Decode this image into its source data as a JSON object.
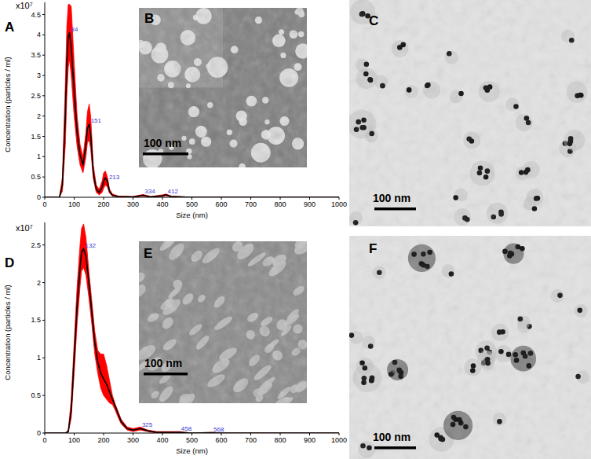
{
  "chart_data": [
    {
      "type": "line",
      "panel_label": "A",
      "x_label": "Size (nm)",
      "y_label": "Concentration (particles / ml)",
      "y_unit_label": "x10⁷",
      "xlim": [
        0,
        1000
      ],
      "ylim": [
        0,
        4.8
      ],
      "xticks": [
        0,
        100,
        200,
        300,
        400,
        500,
        600,
        700,
        800,
        900,
        1000
      ],
      "yticks": [
        0,
        0.5,
        1,
        1.5,
        2,
        2.5,
        3,
        3.5,
        4,
        4.5
      ],
      "x": [
        0,
        50,
        60,
        70,
        75,
        80,
        84,
        90,
        100,
        110,
        120,
        130,
        140,
        145,
        151,
        156,
        165,
        175,
        185,
        195,
        200,
        206,
        213,
        220,
        230,
        250,
        300,
        334,
        360,
        400,
        412,
        430,
        500,
        600,
        700,
        800,
        900,
        1000
      ],
      "series": [
        {
          "type": "area",
          "color": "#ff0000",
          "values": [
            0,
            0,
            0.5,
            2.8,
            4.2,
            4.75,
            4.75,
            4.7,
            3.3,
            2.0,
            1.3,
            1.0,
            1.6,
            2.1,
            2.3,
            2.0,
            0.8,
            0.3,
            0.2,
            0.4,
            0.6,
            0.65,
            0.5,
            0.2,
            0.08,
            0.03,
            0.02,
            0.07,
            0.02,
            0.06,
            0.08,
            0.03,
            0,
            0,
            0,
            0,
            0,
            0
          ],
          "lower": [
            0,
            0,
            0.15,
            1.3,
            2.5,
            3.2,
            3.4,
            3.0,
            2.0,
            1.25,
            0.8,
            0.6,
            1.0,
            1.35,
            1.4,
            1.2,
            0.45,
            0.12,
            0.06,
            0.12,
            0.22,
            0.3,
            0.25,
            0.1,
            0.03,
            0.01,
            0,
            0.03,
            0,
            0.02,
            0.04,
            0.01,
            0,
            0,
            0,
            0,
            0,
            0
          ]
        },
        {
          "type": "line",
          "color": "#000000",
          "values": [
            0,
            0,
            0.3,
            2.0,
            3.3,
            3.95,
            4.05,
            3.7,
            2.6,
            1.6,
            1.05,
            0.8,
            1.3,
            1.7,
            1.8,
            1.55,
            0.6,
            0.2,
            0.12,
            0.25,
            0.4,
            0.48,
            0.4,
            0.15,
            0.05,
            0.02,
            0.01,
            0.05,
            0.01,
            0.04,
            0.06,
            0.02,
            0,
            0,
            0,
            0,
            0,
            0
          ]
        }
      ],
      "annotations": [
        {
          "x": 84,
          "y": 4.05,
          "text": "84"
        },
        {
          "x": 151,
          "y": 1.8,
          "text": "151"
        },
        {
          "x": 213,
          "y": 0.4,
          "text": "213"
        },
        {
          "x": 334,
          "y": 0.05,
          "text": "334"
        },
        {
          "x": 412,
          "y": 0.06,
          "text": "412"
        }
      ]
    },
    {
      "type": "line",
      "panel_label": "D",
      "x_label": "Size (nm)",
      "y_label": "Concentration (particles / ml)",
      "y_unit_label": "x10⁷",
      "xlim": [
        0,
        1000
      ],
      "ylim": [
        0,
        2.8
      ],
      "xticks": [
        0,
        100,
        200,
        300,
        400,
        500,
        600,
        700,
        800,
        900,
        1000
      ],
      "yticks": [
        0,
        0.5,
        1,
        1.5,
        2,
        2.5
      ],
      "x": [
        0,
        70,
        80,
        90,
        100,
        110,
        120,
        125,
        132,
        140,
        150,
        160,
        170,
        180,
        190,
        200,
        210,
        220,
        230,
        240,
        250,
        260,
        280,
        300,
        325,
        350,
        380,
        400,
        458,
        500,
        568,
        600,
        700,
        800,
        900,
        1000
      ],
      "series": [
        {
          "type": "area",
          "color": "#ff0000",
          "values": [
            0,
            0,
            0.04,
            0.45,
            1.2,
            1.95,
            2.5,
            2.72,
            2.78,
            2.6,
            2.15,
            1.75,
            1.35,
            1.1,
            1.05,
            1.05,
            0.9,
            0.7,
            0.5,
            0.38,
            0.28,
            0.18,
            0.08,
            0.06,
            0.08,
            0.04,
            0.02,
            0.02,
            0.02,
            0,
            0.01,
            0,
            0,
            0,
            0,
            0
          ],
          "lower": [
            0,
            0,
            0.01,
            0.2,
            0.8,
            1.45,
            1.95,
            2.15,
            2.2,
            2.1,
            1.8,
            1.45,
            1.05,
            0.8,
            0.6,
            0.5,
            0.45,
            0.4,
            0.38,
            0.3,
            0.2,
            0.12,
            0.04,
            0.02,
            0.04,
            0.02,
            0,
            0,
            0,
            0,
            0,
            0,
            0,
            0,
            0,
            0
          ]
        },
        {
          "type": "line",
          "color": "#000000",
          "values": [
            0,
            0,
            0.02,
            0.3,
            1.0,
            1.7,
            2.2,
            2.4,
            2.45,
            2.35,
            2.0,
            1.6,
            1.2,
            0.95,
            0.8,
            0.72,
            0.65,
            0.55,
            0.45,
            0.35,
            0.25,
            0.15,
            0.06,
            0.04,
            0.06,
            0.03,
            0.01,
            0.01,
            0.01,
            0,
            0.005,
            0,
            0,
            0,
            0,
            0
          ]
        }
      ],
      "annotations": [
        {
          "x": 132,
          "y": 2.45,
          "text": "132"
        },
        {
          "x": 325,
          "y": 0.06,
          "text": "325"
        },
        {
          "x": 458,
          "y": 0.01,
          "text": "458"
        },
        {
          "x": 568,
          "y": 0.005,
          "text": "568"
        }
      ]
    }
  ],
  "images": [
    {
      "label": "B",
      "scale_bar": "100 nm"
    },
    {
      "label": "C",
      "scale_bar": "100 nm"
    },
    {
      "label": "E",
      "scale_bar": "100 nm"
    },
    {
      "label": "F",
      "scale_bar": "100 nm"
    }
  ]
}
